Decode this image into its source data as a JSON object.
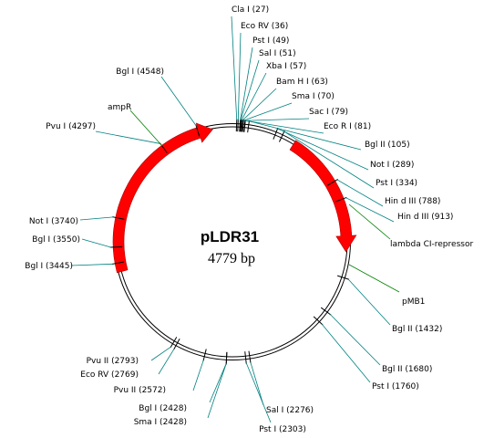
{
  "plasmid": {
    "name": "pLDR31",
    "size_label": "4779 bp",
    "total_bp": 4779
  },
  "colors": {
    "backbone": "#000000",
    "site_leader": "#008080",
    "feature_arrow": "#ff0000",
    "feature_leader": "#008000"
  },
  "sites": [
    {
      "label": "Cla I (27)",
      "bp": 27
    },
    {
      "label": "Eco RV (36)",
      "bp": 36
    },
    {
      "label": "Pst I (49)",
      "bp": 49
    },
    {
      "label": "Sal I (51)",
      "bp": 51
    },
    {
      "label": "Xba I (57)",
      "bp": 57
    },
    {
      "label": "Bam H I (63)",
      "bp": 63
    },
    {
      "label": "Sma I (70)",
      "bp": 70
    },
    {
      "label": "Sac I (79)",
      "bp": 79
    },
    {
      "label": "Eco R I (81)",
      "bp": 81
    },
    {
      "label": "Bgl II (105)",
      "bp": 105
    },
    {
      "label": "Not I (289)",
      "bp": 289
    },
    {
      "label": "Pst I (334)",
      "bp": 334
    },
    {
      "label": "Hin d III (788)",
      "bp": 788
    },
    {
      "label": "Hin d III (913)",
      "bp": 913
    },
    {
      "label": "Bgl II (1432)",
      "bp": 1432
    },
    {
      "label": "Bgl II (1680)",
      "bp": 1680
    },
    {
      "label": "Pst I (1760)",
      "bp": 1760
    },
    {
      "label": "Pst I (2303)",
      "bp": 2303
    },
    {
      "label": "Sal I (2276)",
      "bp": 2276
    },
    {
      "label": "Sma I (2428)",
      "bp": 2428
    },
    {
      "label": "Bgl I (2428)",
      "bp": 2428
    },
    {
      "label": "Pvu II (2572)",
      "bp": 2572
    },
    {
      "label": "Eco RV (2769)",
      "bp": 2769
    },
    {
      "label": "Pvu II (2793)",
      "bp": 2793
    },
    {
      "label": "Bgl I (3445)",
      "bp": 3445
    },
    {
      "label": "Bgl I (3550)",
      "bp": 3550
    },
    {
      "label": "Not I (3740)",
      "bp": 3740
    },
    {
      "label": "Pvu I (4297)",
      "bp": 4297
    },
    {
      "label": "Bgl I (4548)",
      "bp": 4548
    }
  ],
  "features": [
    {
      "label": "ampR"
    },
    {
      "label": "lambda CI-repressor"
    },
    {
      "label": "pMB1"
    }
  ]
}
